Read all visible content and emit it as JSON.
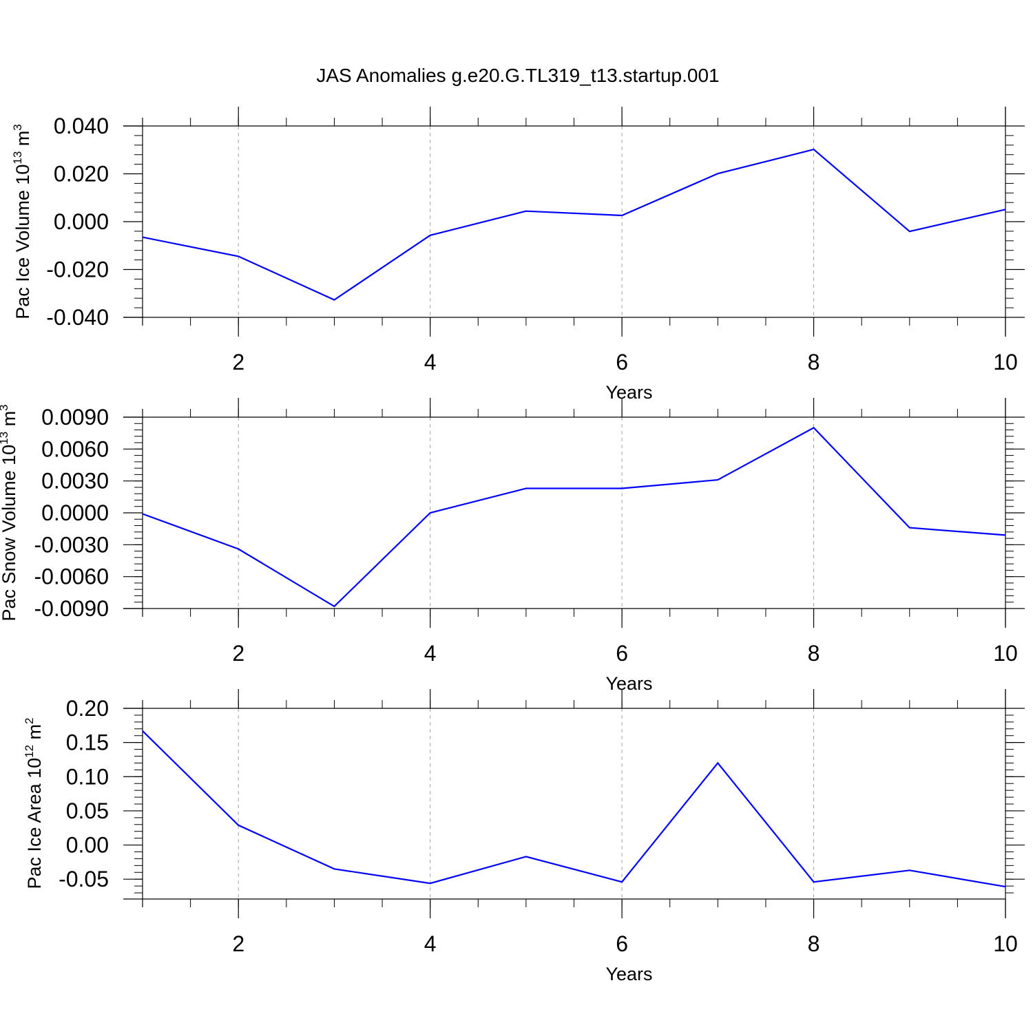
{
  "title": "JAS Anomalies g.e20.G.TL319_t13.startup.001",
  "colors": {
    "line": "#0000ff",
    "axis": "#000000",
    "grid": "#a0a0a0"
  },
  "chart_data": [
    {
      "type": "line",
      "xlabel": "Years",
      "ylabel": {
        "base": "Pac Ice Volume 10",
        "exp": "13",
        "unit": " m",
        "unit_exp": "3"
      },
      "x": [
        1,
        2,
        3,
        4,
        5,
        6,
        7,
        8,
        9,
        10
      ],
      "xlim": [
        1,
        10
      ],
      "xticks": [
        2,
        4,
        6,
        8,
        10
      ],
      "xtick_labels": [
        "2",
        "4",
        "6",
        "8",
        "10"
      ],
      "ylim": [
        -0.04,
        0.04
      ],
      "yticks": [
        -0.04,
        -0.02,
        0.0,
        0.02,
        0.04
      ],
      "ytick_labels": [
        "-0.040",
        "-0.020",
        "0.000",
        "0.020",
        "0.040"
      ],
      "grid": "vertical-dashed",
      "series": [
        {
          "values": [
            -0.0065,
            -0.0145,
            -0.0327,
            -0.0057,
            0.0044,
            0.0026,
            0.0201,
            0.0302,
            -0.0041,
            0.0051
          ]
        }
      ]
    },
    {
      "type": "line",
      "xlabel": "Years",
      "ylabel": {
        "base": "Pac Snow Volume 10",
        "exp": "13",
        "unit": " m",
        "unit_exp": "3"
      },
      "x": [
        1,
        2,
        3,
        4,
        5,
        6,
        7,
        8,
        9,
        10
      ],
      "xlim": [
        1,
        10
      ],
      "xticks": [
        2,
        4,
        6,
        8,
        10
      ],
      "xtick_labels": [
        "2",
        "4",
        "6",
        "8",
        "10"
      ],
      "ylim": [
        -0.009,
        0.009
      ],
      "yticks": [
        -0.009,
        -0.006,
        -0.003,
        0.0,
        0.003,
        0.006,
        0.009
      ],
      "ytick_labels": [
        "-0.0090",
        "-0.0060",
        "-0.0030",
        "0.0000",
        "0.0030",
        "0.0060",
        "0.0090"
      ],
      "grid": "vertical-dashed",
      "series": [
        {
          "values": [
            -0.0001,
            -0.0034,
            -0.0088,
            0.0,
            0.0023,
            0.0023,
            0.0031,
            0.008,
            -0.0014,
            -0.0021
          ]
        }
      ]
    },
    {
      "type": "line",
      "xlabel": "Years",
      "ylabel": {
        "base": "Pac Ice Area 10",
        "exp": "12",
        "unit": " m",
        "unit_exp": "2"
      },
      "x": [
        1,
        2,
        3,
        4,
        5,
        6,
        7,
        8,
        9,
        10
      ],
      "xlim": [
        1,
        10
      ],
      "xticks": [
        2,
        4,
        6,
        8,
        10
      ],
      "xtick_labels": [
        "2",
        "4",
        "6",
        "8",
        "10"
      ],
      "ylim": [
        -0.079,
        0.2
      ],
      "yticks": [
        -0.05,
        0.0,
        0.05,
        0.1,
        0.15,
        0.2
      ],
      "ytick_labels": [
        "-0.05",
        "0.00",
        "0.05",
        "0.10",
        "0.15",
        "0.20"
      ],
      "grid": "vertical-dashed",
      "series": [
        {
          "values": [
            0.167,
            0.029,
            -0.035,
            -0.056,
            -0.017,
            -0.054,
            0.12,
            -0.054,
            -0.037,
            -0.061
          ]
        }
      ]
    }
  ]
}
